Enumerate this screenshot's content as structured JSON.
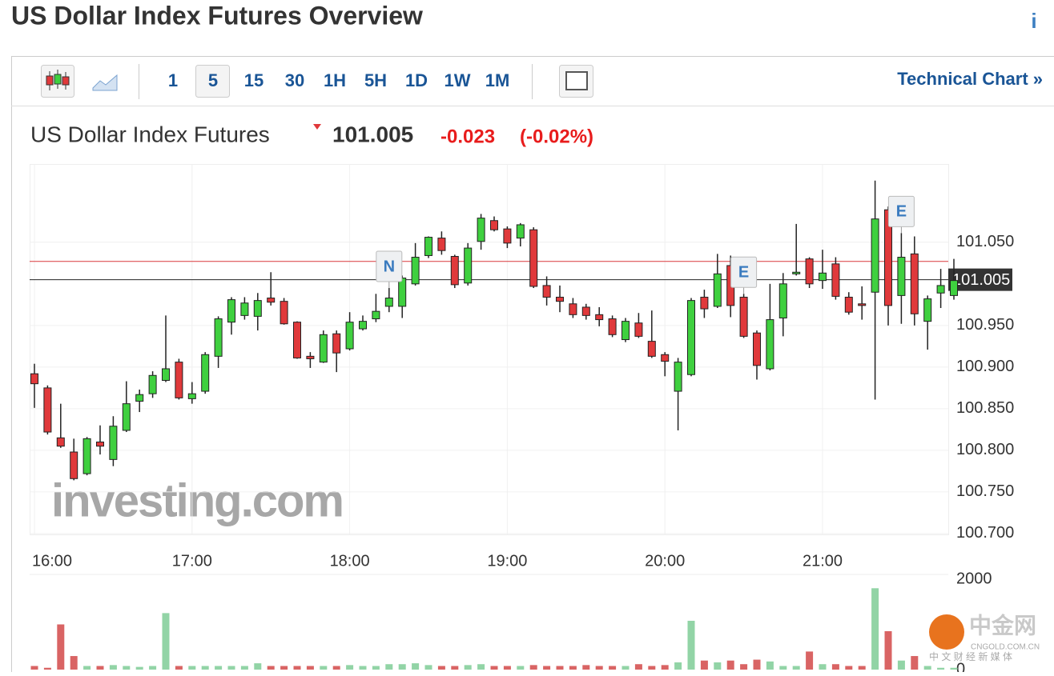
{
  "header": {
    "title": "US Dollar Index Futures Overview",
    "info_icon": "i"
  },
  "toolbar": {
    "intervals": [
      "1",
      "5",
      "15",
      "30",
      "1H",
      "5H",
      "1D",
      "1W",
      "1M"
    ],
    "selected": 1,
    "link": "Technical Chart »"
  },
  "quote": {
    "name": "US Dollar Index Futures",
    "price": "101.005",
    "change": "-0.023",
    "change_percent": "(-0.02%)"
  },
  "watermark": "investing.com",
  "logo": {
    "name": "中金网",
    "site": "CNGOLD.COM.CN",
    "tagline": "中 文 财 经 新 媒 体"
  },
  "chart_data": {
    "type": "candlestick",
    "categories": [
      "16:00",
      null,
      null,
      null,
      null,
      null,
      null,
      null,
      null,
      null,
      null,
      null,
      "17:00",
      null,
      null,
      null,
      null,
      null,
      null,
      null,
      null,
      null,
      null,
      null,
      "18:00",
      null,
      null,
      null,
      null,
      null,
      null,
      null,
      null,
      null,
      null,
      null,
      "19:00",
      null,
      null,
      null,
      null,
      null,
      null,
      null,
      null,
      null,
      null,
      null,
      "20:00",
      null,
      null,
      null,
      null,
      null,
      null,
      null,
      null,
      null,
      null,
      null,
      "21:00",
      null,
      null,
      null,
      null,
      null,
      null,
      null,
      null,
      null,
      null
    ],
    "open": [
      100.892,
      100.875,
      100.815,
      100.798,
      100.772,
      100.81,
      100.789,
      100.824,
      100.859,
      100.868,
      100.884,
      100.906,
      100.862,
      100.871,
      100.913,
      100.954,
      100.962,
      100.961,
      100.983,
      100.979,
      100.954,
      100.913,
      100.906,
      100.94,
      100.922,
      100.946,
      100.958,
      100.973,
      100.973,
      101.0,
      101.034,
      101.055,
      101.033,
      101.001,
      101.051,
      101.076,
      101.066,
      101.055,
      101.065,
      100.998,
      100.984,
      100.976,
      100.972,
      100.963,
      100.958,
      100.933,
      100.953,
      100.931,
      100.915,
      100.871,
      100.891,
      100.984,
      100.973,
      101.022,
      100.984,
      100.941,
      100.898,
      100.959,
      101.012,
      101.03,
      101.004,
      101.024,
      100.984,
      100.976,
      100.99,
      101.089,
      100.986,
      101.036,
      100.955,
      100.989,
      100.986
    ],
    "high": [
      100.904,
      100.878,
      100.856,
      100.814,
      100.816,
      100.83,
      100.841,
      100.883,
      100.873,
      100.895,
      100.962,
      100.91,
      100.882,
      100.918,
      100.961,
      100.984,
      100.984,
      100.989,
      101.014,
      100.983,
      100.955,
      100.918,
      100.944,
      100.944,
      100.966,
      100.962,
      100.988,
      100.995,
      101.01,
      101.049,
      101.057,
      101.063,
      101.035,
      101.049,
      101.084,
      101.081,
      101.069,
      101.073,
      101.068,
      101.009,
      100.998,
      100.983,
      100.976,
      100.972,
      100.962,
      100.959,
      100.965,
      100.968,
      100.918,
      100.911,
      100.983,
      100.993,
      101.036,
      101.034,
      100.988,
      100.944,
      101.0,
      101.013,
      101.072,
      101.032,
      101.041,
      101.032,
      100.99,
      100.997,
      101.124,
      101.093,
      101.061,
      101.057,
      100.986,
      101.018,
      101.03
    ],
    "low": [
      100.851,
      100.819,
      100.803,
      100.764,
      100.77,
      100.795,
      100.781,
      100.822,
      100.846,
      100.863,
      100.882,
      100.861,
      100.856,
      100.868,
      100.899,
      100.939,
      100.957,
      100.944,
      100.974,
      100.951,
      100.91,
      100.899,
      100.905,
      100.894,
      100.92,
      100.944,
      100.954,
      100.966,
      100.959,
      100.998,
      101.031,
      101.035,
      100.995,
      100.998,
      101.041,
      101.063,
      101.043,
      101.045,
      100.995,
      100.974,
      100.966,
      100.959,
      100.957,
      100.949,
      100.936,
      100.93,
      100.935,
      100.911,
      100.889,
      100.824,
      100.889,
      100.959,
      100.971,
      100.96,
      100.935,
      100.885,
      100.896,
      100.937,
      101.01,
      100.995,
      100.994,
      100.981,
      100.963,
      100.957,
      100.861,
      100.95,
      100.952,
      100.95,
      100.921,
      100.971,
      100.981
    ],
    "close": [
      100.88,
      100.822,
      100.805,
      100.766,
      100.814,
      100.805,
      100.829,
      100.856,
      100.867,
      100.89,
      100.898,
      100.863,
      100.868,
      100.915,
      100.958,
      100.981,
      100.977,
      100.98,
      100.978,
      100.952,
      100.911,
      100.91,
      100.939,
      100.917,
      100.954,
      100.955,
      100.967,
      100.983,
      101.007,
      101.032,
      101.056,
      101.04,
      100.999,
      101.043,
      101.079,
      101.065,
      101.049,
      101.071,
      100.997,
      100.984,
      100.979,
      100.963,
      100.962,
      100.957,
      100.939,
      100.955,
      100.937,
      100.913,
      100.907,
      100.906,
      100.98,
      100.97,
      101.012,
      100.974,
      100.937,
      100.902,
      100.957,
      101.0,
      101.014,
      101.0,
      101.013,
      100.985,
      100.966,
      100.974,
      101.078,
      100.974,
      101.032,
      100.964,
      100.982,
      100.998,
      101.004
    ],
    "volume": [
      80,
      40,
      1000,
      300,
      80,
      80,
      100,
      80,
      60,
      80,
      1250,
      80,
      80,
      80,
      80,
      80,
      80,
      140,
      80,
      80,
      80,
      80,
      80,
      80,
      100,
      80,
      80,
      120,
      120,
      140,
      100,
      80,
      80,
      100,
      120,
      80,
      80,
      80,
      100,
      80,
      80,
      80,
      100,
      80,
      80,
      80,
      120,
      80,
      100,
      160,
      1080,
      200,
      160,
      200,
      120,
      220,
      180,
      80,
      80,
      400,
      120,
      120,
      80,
      80,
      1800,
      850,
      200,
      300,
      80,
      40,
      40
    ],
    "up_color": "#3fd03f",
    "down_color": "#e0393b",
    "volume_up_color": "#92d4a6",
    "volume_down_color": "#d96464",
    "ylim": [
      100.699,
      101.144
    ],
    "yticks": [
      {
        "value": 100.7,
        "label": "100.700"
      },
      {
        "value": 100.75,
        "label": "100.750"
      },
      {
        "value": 100.8,
        "label": "100.800"
      },
      {
        "value": 100.85,
        "label": "100.850"
      },
      {
        "value": 100.9,
        "label": "100.900"
      },
      {
        "value": 100.95,
        "label": "100.950"
      },
      {
        "value": 101.05,
        "label": "101.050"
      }
    ],
    "volume_lim": [
      0,
      2000
    ],
    "volume_ticks": [
      0,
      2000
    ],
    "last_price": 101.005,
    "reference_line": 101.027,
    "grid": true,
    "events": [
      {
        "category_index": 27,
        "label": "N"
      },
      {
        "category_index": 54,
        "label": "E"
      },
      {
        "category_index": 66,
        "label": "E"
      }
    ]
  }
}
